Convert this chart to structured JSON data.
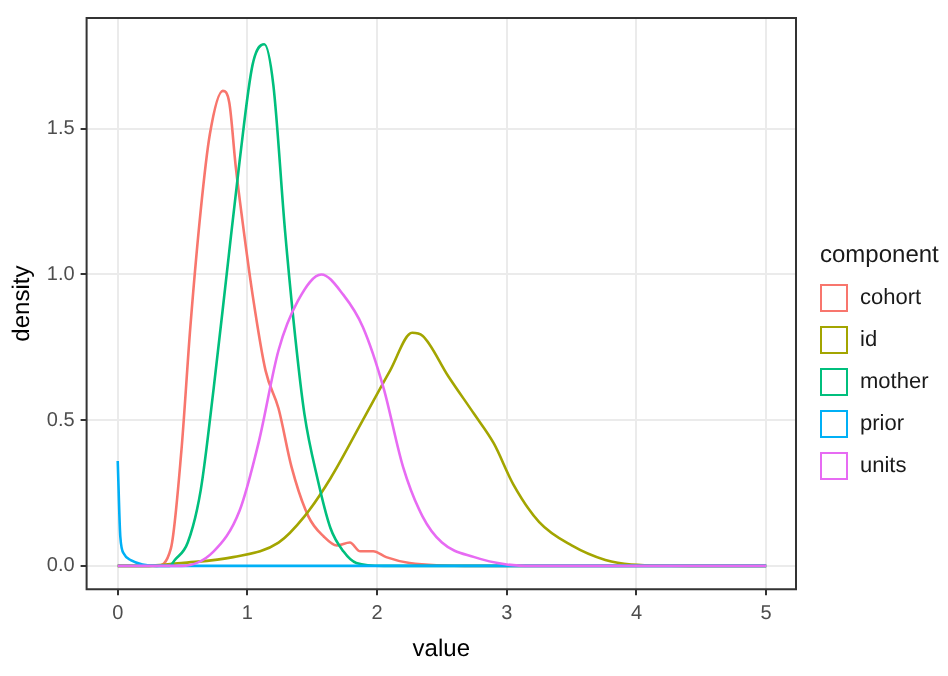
{
  "chart_data": {
    "type": "line",
    "xlabel": "value",
    "ylabel": "density",
    "legend_title": "component",
    "legend": "right",
    "grid": true,
    "marker": "none",
    "line_style": "solid",
    "xlim": [
      -0.24,
      5.23
    ],
    "ylim": [
      -0.08,
      1.88
    ],
    "xticks": [
      0,
      1,
      2,
      3,
      4,
      5
    ],
    "yticks": [
      {
        "value": 0,
        "label": "0.0"
      },
      {
        "value": 0.5,
        "label": "0.5"
      },
      {
        "value": 1,
        "label": "1.0"
      },
      {
        "value": 1.5,
        "label": "1.5"
      }
    ],
    "series": [
      {
        "name": "cohort",
        "color": "#f8766d",
        "x": [
          0,
          0.3,
          0.41,
          0.49,
          0.56,
          0.64,
          0.71,
          0.81,
          0.86,
          0.91,
          0.96,
          1.04,
          1.14,
          1.24,
          1.34,
          1.47,
          1.59,
          1.69,
          1.79,
          1.87,
          1.97,
          2.07,
          2.25,
          2.75,
          5
        ],
        "values": [
          0,
          0,
          0.06,
          0.39,
          0.82,
          1.22,
          1.48,
          1.63,
          1.59,
          1.37,
          1.19,
          0.93,
          0.67,
          0.54,
          0.34,
          0.17,
          0.1,
          0.07,
          0.08,
          0.05,
          0.05,
          0.03,
          0.01,
          0,
          0
        ]
      },
      {
        "name": "id",
        "color": "#a3a500",
        "x": [
          0,
          0.2,
          0.49,
          0.89,
          1.24,
          1.44,
          1.64,
          1.89,
          2.1,
          2.27,
          2.35,
          2.55,
          2.75,
          2.9,
          3.05,
          3.25,
          3.5,
          3.76,
          3.96,
          4.5,
          5
        ],
        "values": [
          0,
          0,
          0.01,
          0.03,
          0.08,
          0.17,
          0.3,
          0.5,
          0.67,
          0.8,
          0.79,
          0.65,
          0.52,
          0.42,
          0.28,
          0.15,
          0.07,
          0.02,
          0.005,
          0,
          0
        ]
      },
      {
        "name": "mother",
        "color": "#00bf7d",
        "x": [
          0,
          0.4,
          0.44,
          0.54,
          0.64,
          0.74,
          0.84,
          0.94,
          1.04,
          1.13,
          1.2,
          1.29,
          1.37,
          1.44,
          1.54,
          1.64,
          1.74,
          1.84,
          2.05,
          5
        ],
        "values": [
          0,
          0,
          0.02,
          0.08,
          0.26,
          0.61,
          1,
          1.39,
          1.72,
          1.79,
          1.65,
          1.15,
          0.78,
          0.52,
          0.3,
          0.13,
          0.05,
          0.01,
          0,
          0
        ]
      },
      {
        "name": "prior",
        "color": "#00b0f6",
        "x": [
          0,
          0.02,
          0.05,
          0.1,
          0.3,
          5
        ],
        "values": [
          0.36,
          0.1,
          0.04,
          0.02,
          0,
          0
        ]
      },
      {
        "name": "units",
        "color": "#e76bf3",
        "x": [
          0,
          0.49,
          0.74,
          0.94,
          1.09,
          1.24,
          1.39,
          1.57,
          1.74,
          1.89,
          2.05,
          2.2,
          2.35,
          2.5,
          2.75,
          3,
          3.2,
          5
        ],
        "values": [
          0,
          0,
          0.05,
          0.19,
          0.43,
          0.74,
          0.91,
          1,
          0.93,
          0.82,
          0.61,
          0.34,
          0.17,
          0.08,
          0.03,
          0.005,
          0,
          0
        ]
      }
    ]
  }
}
